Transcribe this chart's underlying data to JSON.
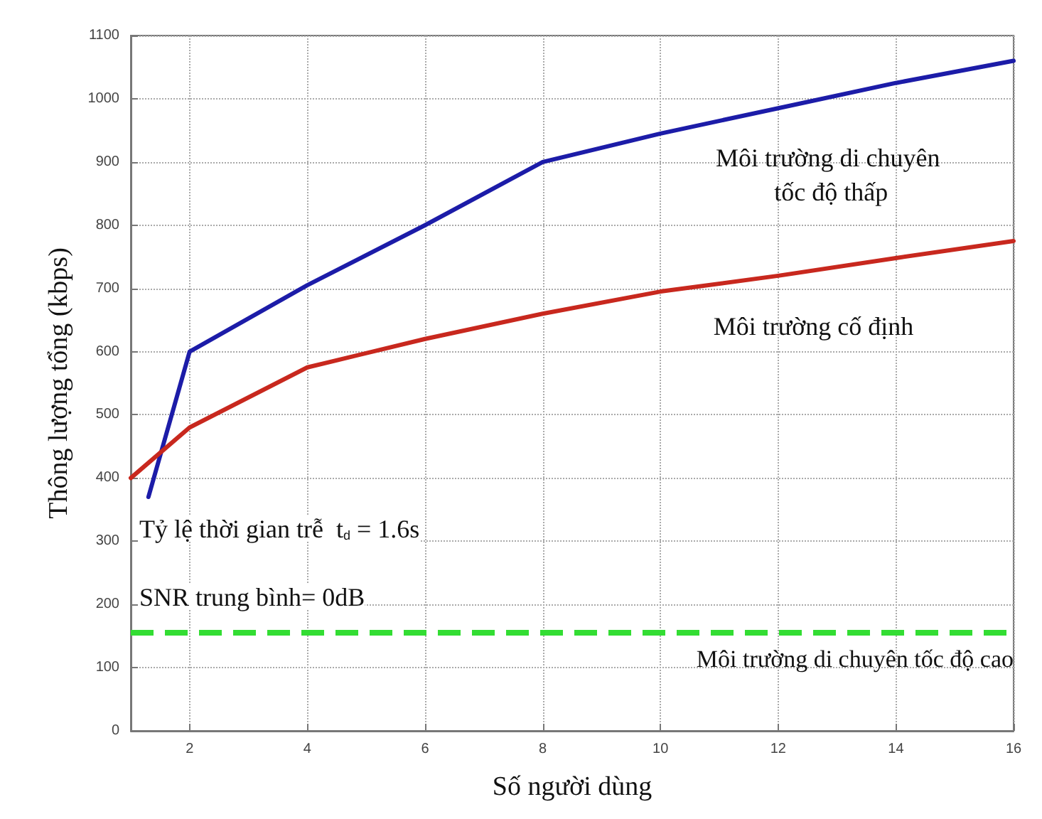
{
  "chart_data": {
    "type": "line",
    "xlabel": "Số người dùng",
    "ylabel": "Thông lượng tổng (kbps)",
    "xlim": [
      1,
      16
    ],
    "xticks": [
      2,
      4,
      6,
      8,
      10,
      12,
      14,
      16
    ],
    "ylim": [
      0,
      1100
    ],
    "yticks": [
      0,
      100,
      200,
      300,
      400,
      500,
      600,
      700,
      800,
      900,
      1000,
      1100
    ],
    "grid": true,
    "legend": false,
    "marker": "none",
    "line_style": "solid",
    "series": [
      {
        "name": "Môi trường di chuyên tốc độ thấp",
        "color": "#1c1ca8",
        "x": [
          1.3,
          2,
          4,
          6,
          8,
          10,
          12,
          14,
          16
        ],
        "values": [
          370,
          600,
          705,
          800,
          900,
          945,
          985,
          1025,
          1060
        ]
      },
      {
        "name": "Môi trường cố định",
        "color": "#c8281e",
        "x": [
          1,
          2,
          4,
          6,
          8,
          10,
          12,
          14,
          16
        ],
        "values": [
          400,
          480,
          575,
          620,
          660,
          695,
          720,
          748,
          775
        ]
      }
    ],
    "ref_lines": [
      {
        "axis": "y",
        "value": 155,
        "label": "Môi trường di chuyên tốc độ cao",
        "color": "#33dd33",
        "line_style": "dashed"
      }
    ],
    "annotations": [
      "Tỷ lệ thời gian trễ  t$_{d}$ = 1.6s",
      "SNR trung bình= 0dB"
    ]
  }
}
